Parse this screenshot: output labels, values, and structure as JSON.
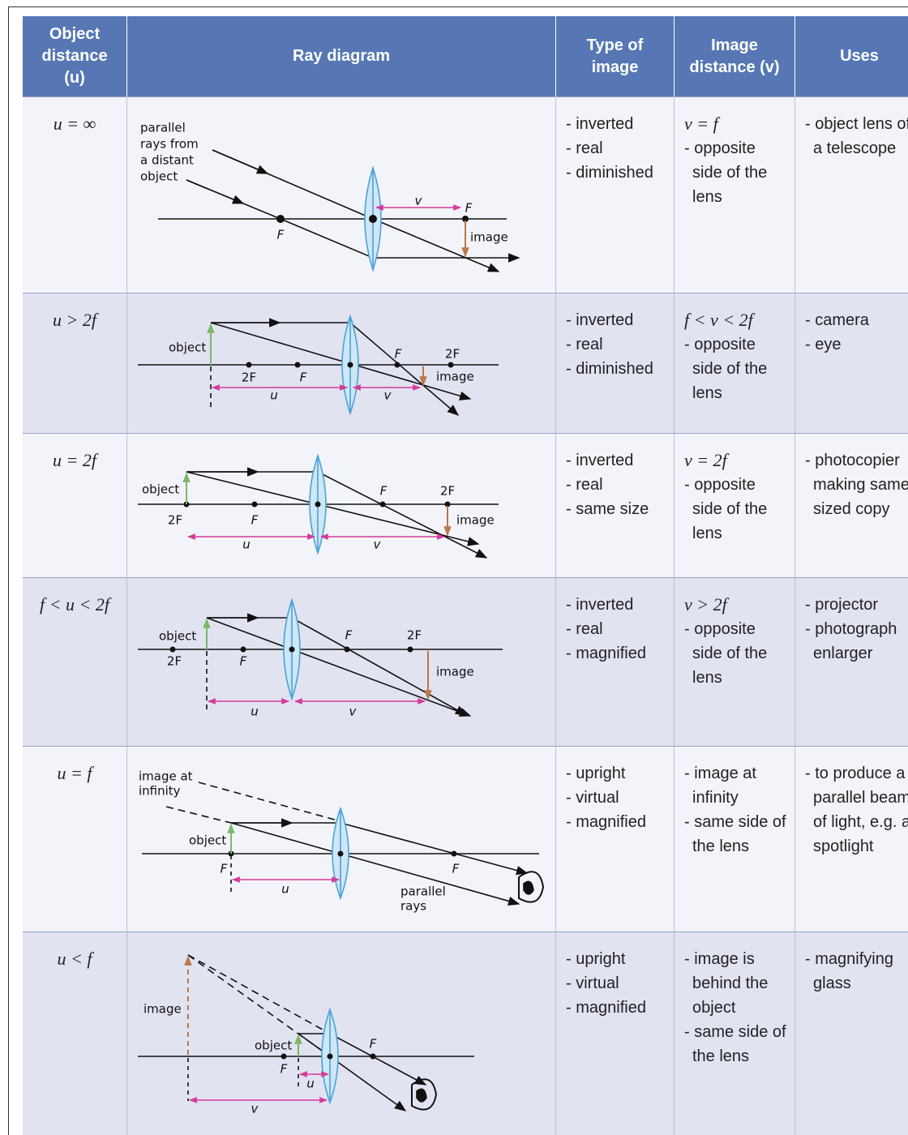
{
  "table": {
    "headers": [
      "Object distance (u)",
      "Ray diagram",
      "Type of image",
      "Image distance (v)",
      "Uses"
    ],
    "rows": [
      {
        "object_distance": "u = ∞",
        "diagram": [
          "parallel",
          "rays from",
          "a distant",
          "object",
          "v",
          "F",
          "F",
          "image"
        ],
        "type": [
          "- inverted",
          "- real",
          "- diminished"
        ],
        "image_distance": [
          "v = f",
          "- opposite side of the lens"
        ],
        "uses": [
          "- object lens of a telescope"
        ]
      },
      {
        "object_distance": "u > 2f",
        "diagram": [
          "object",
          "2F",
          "F",
          "F",
          "2F",
          "image",
          "u",
          "v"
        ],
        "type": [
          "- inverted",
          "- real",
          "- diminished"
        ],
        "image_distance": [
          "f < v < 2f",
          "- opposite side of the lens"
        ],
        "uses": [
          "- camera",
          "- eye"
        ]
      },
      {
        "object_distance": "u = 2f",
        "diagram": [
          "object",
          "2F",
          "F",
          "F",
          "2F",
          "image",
          "u",
          "v"
        ],
        "type": [
          "- inverted",
          "- real",
          "- same size"
        ],
        "image_distance": [
          "v = 2f",
          "- opposite side of the lens"
        ],
        "uses": [
          "- photocopier making same-sized copy"
        ]
      },
      {
        "object_distance": "f < u < 2f",
        "diagram": [
          "object",
          "2F",
          "F",
          "F",
          "2F",
          "image",
          "u",
          "v"
        ],
        "type": [
          "- inverted",
          "- real",
          "- magnified"
        ],
        "image_distance": [
          "v > 2f",
          "- opposite side of the lens"
        ],
        "uses": [
          "- projector",
          "- photograph enlarger"
        ]
      },
      {
        "object_distance": "u = f",
        "diagram": [
          "image at",
          "infinity",
          "object",
          "F",
          "F",
          "parallel",
          "rays",
          "u"
        ],
        "type": [
          "- upright",
          "- virtual",
          "- magnified"
        ],
        "image_distance": [
          "- image at infinity",
          "- same side of the lens"
        ],
        "uses": [
          "- to produce a parallel beam of light, e.g. a spotlight"
        ]
      },
      {
        "object_distance": "u < f",
        "diagram": [
          "image",
          "object",
          "F",
          "F",
          "u",
          "v"
        ],
        "type": [
          "- upright",
          "- virtual",
          "- magnified"
        ],
        "image_distance": [
          "- image is behind the object",
          "- same side of the lens"
        ],
        "uses": [
          "- magnifying glass"
        ]
      }
    ]
  }
}
